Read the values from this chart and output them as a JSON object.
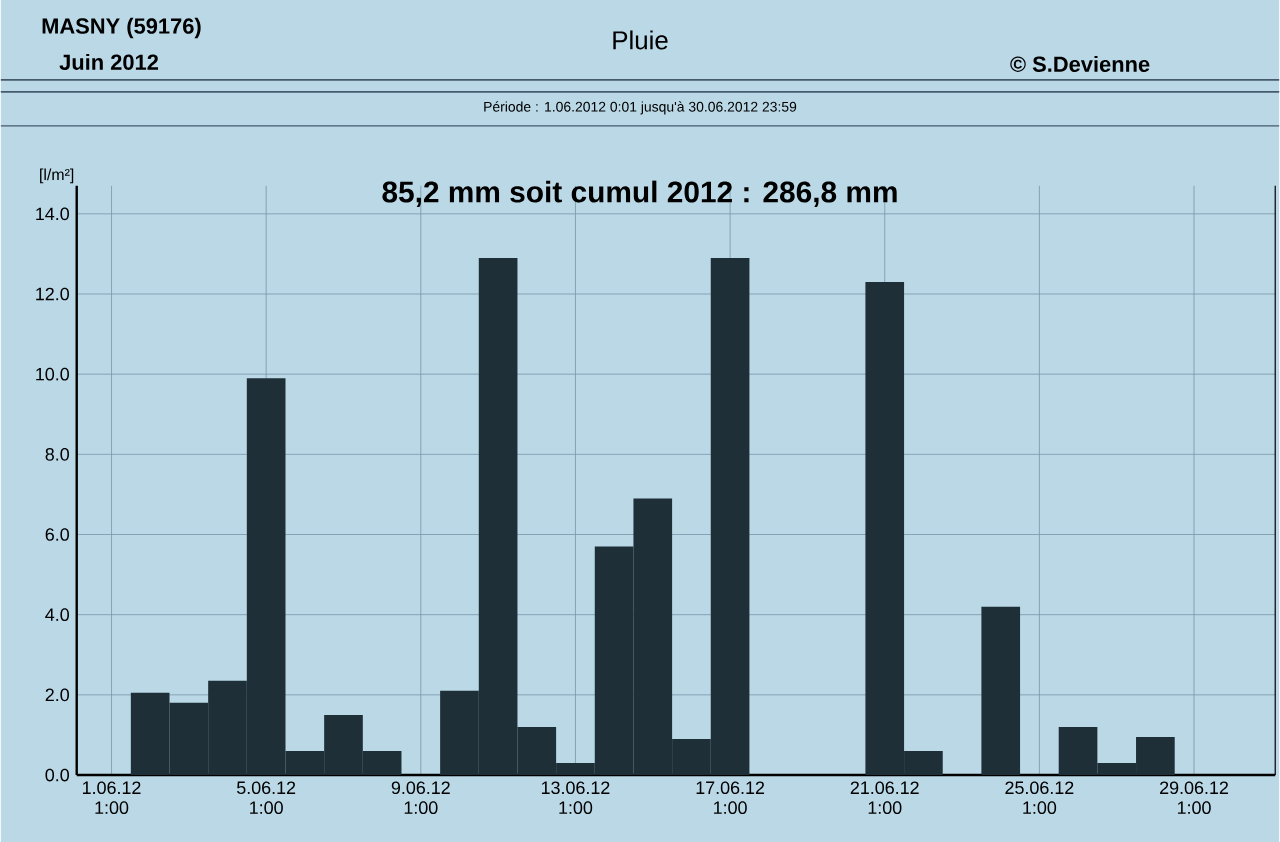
{
  "chart_data": {
    "type": "bar",
    "title": "Pluie",
    "subtitle": "Période :  1.06.2012   0:01   jusqu'à  30.06.2012   23:59",
    "ylabel": "[l/m²]",
    "annotations": [
      "MASNY (59176)",
      "Juin  2012",
      "© S.Devienne",
      "85,2 mm  soit cumul 2012 : 286,8 mm"
    ],
    "categories": [
      "1.06.12 1:00",
      null,
      null,
      null,
      "5.06.12 1:00",
      null,
      null,
      null,
      "9.06.12 1:00",
      null,
      null,
      null,
      "13.06.12 1:00",
      null,
      null,
      null,
      "17.06.12 1:00",
      null,
      null,
      null,
      "21.06.12 1:00",
      null,
      null,
      null,
      "25.06.12 1:00",
      null,
      null,
      null,
      "29.06.12 1:00",
      null
    ],
    "values": [
      0,
      2.05,
      1.8,
      2.35,
      9.9,
      0.6,
      1.5,
      0.6,
      0,
      2.1,
      12.9,
      1.2,
      0.3,
      5.7,
      6.9,
      0.9,
      12.9,
      0,
      0,
      0,
      12.3,
      0.6,
      0,
      4.2,
      0,
      1.2,
      0.3,
      0.95,
      0,
      0
    ],
    "color": "#1f2f38",
    "ylim": [
      0,
      14.7
    ],
    "yticks": [
      {
        "value": 0,
        "label": "0.0"
      },
      {
        "value": 2,
        "label": "2.0"
      },
      {
        "value": 4,
        "label": "4.0"
      },
      {
        "value": 6,
        "label": "6.0"
      },
      {
        "value": 8,
        "label": "8.0"
      },
      {
        "value": 10,
        "label": "10.0"
      },
      {
        "value": 12,
        "label": "12.0"
      },
      {
        "value": 14,
        "label": "14.0"
      }
    ],
    "grid": true
  }
}
